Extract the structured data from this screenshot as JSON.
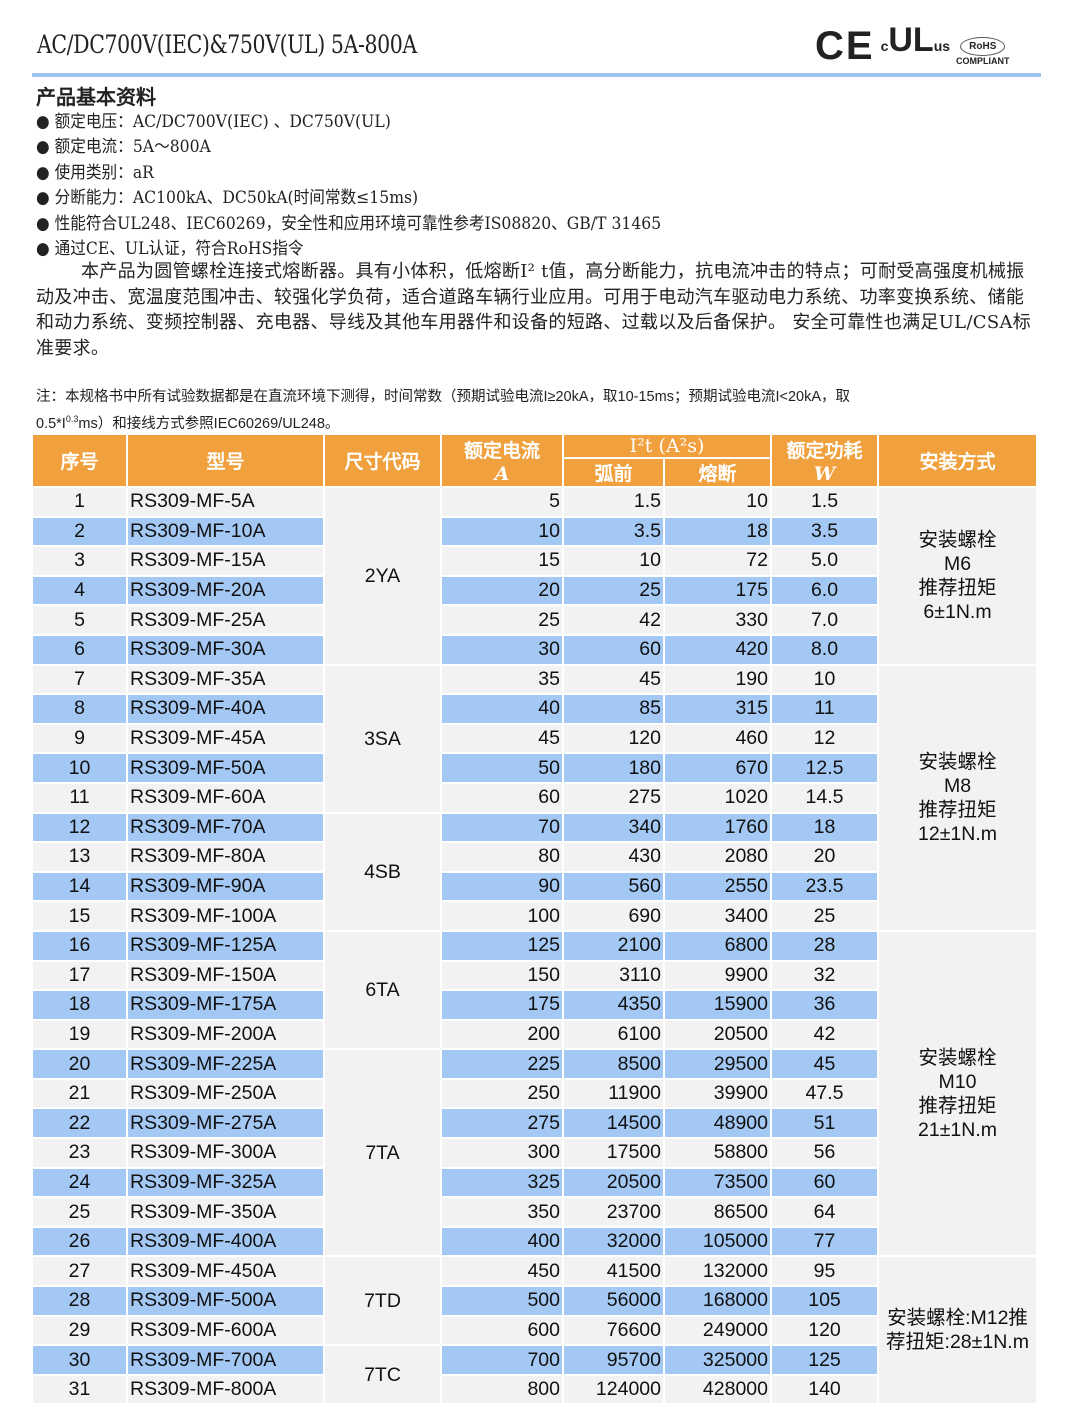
{
  "header": {
    "title": "AC/DC700V(IEC)&750V(UL)  5A-800A",
    "logos": {
      "ce": "CE",
      "ul": "c UL us",
      "rohs": "RoHS",
      "compliant": "COMPLIANT"
    }
  },
  "section_title": "产品基本资料",
  "bullets": [
    "额定电压：AC/DC700V(IEC) 、DC750V(UL)",
    "额定电流：5A～800A",
    "使用类别：aR",
    "分断能力：AC100kA、DC50kA(时间常数≤15ms)",
    "性能符合UL248、IEC60269，安全性和应用环境可靠性参考IS08820、GB/T 31465",
    "通过CE、UL认证，符合RoHS指令"
  ],
  "paragraph": "本产品为圆管螺栓连接式熔断器。具有小体积，低熔断I² t值，高分断能力，抗电流冲击的特点；可耐受高强度机械振动及冲击、宽温度范围冲击、较强化学负荷，适合道路车辆行业应用。可用于电动汽车驱动电力系统、功率变换系统、储能和动力系统、变频控制器、充电器、导线及其他车用器件和设备的短路、过载以及后备保护。 安全可靠性也满足UL/CSA标准要求。",
  "note": {
    "line1": "注：本规格书中所有试验数据都是在直流环境下测得，时间常数（预期试验电流I≥20kA，取10-15ms；预期试验电流I<20kA，取",
    "prefix": "0.5*I",
    "sup": "0.3",
    "suffix": "ms）和接线方式参照IEC60269/UL248。"
  },
  "colors": {
    "header_bg": "#f0a03c",
    "row_blue": "#a4c8f4",
    "row_gray": "#f2f2f2",
    "rule": "#9dc3ef"
  },
  "table": {
    "headers": {
      "seq": "序号",
      "model": "型号",
      "size": "尺寸代码",
      "current": "额定电流",
      "current_unit": "A",
      "i2t": "I²t (A²s)",
      "prearc": "弧前",
      "total": "熔断",
      "power": "额定功耗",
      "power_unit": "W",
      "mount": "安装方式"
    },
    "rows": [
      [
        "1",
        "RS309-MF-5A",
        "5",
        "1.5",
        "10",
        "1.5"
      ],
      [
        "2",
        "RS309-MF-10A",
        "10",
        "3.5",
        "18",
        "3.5"
      ],
      [
        "3",
        "RS309-MF-15A",
        "15",
        "10",
        "72",
        "5.0"
      ],
      [
        "4",
        "RS309-MF-20A",
        "20",
        "25",
        "175",
        "6.0"
      ],
      [
        "5",
        "RS309-MF-25A",
        "25",
        "42",
        "330",
        "7.0"
      ],
      [
        "6",
        "RS309-MF-30A",
        "30",
        "60",
        "420",
        "8.0"
      ],
      [
        "7",
        "RS309-MF-35A",
        "35",
        "45",
        "190",
        "10"
      ],
      [
        "8",
        "RS309-MF-40A",
        "40",
        "85",
        "315",
        "11"
      ],
      [
        "9",
        "RS309-MF-45A",
        "45",
        "120",
        "460",
        "12"
      ],
      [
        "10",
        "RS309-MF-50A",
        "50",
        "180",
        "670",
        "12.5"
      ],
      [
        "11",
        "RS309-MF-60A",
        "60",
        "275",
        "1020",
        "14.5"
      ],
      [
        "12",
        "RS309-MF-70A",
        "70",
        "340",
        "1760",
        "18"
      ],
      [
        "13",
        "RS309-MF-80A",
        "80",
        "430",
        "2080",
        "20"
      ],
      [
        "14",
        "RS309-MF-90A",
        "90",
        "560",
        "2550",
        "23.5"
      ],
      [
        "15",
        "RS309-MF-100A",
        "100",
        "690",
        "3400",
        "25"
      ],
      [
        "16",
        "RS309-MF-125A",
        "125",
        "2100",
        "6800",
        "28"
      ],
      [
        "17",
        "RS309-MF-150A",
        "150",
        "3110",
        "9900",
        "32"
      ],
      [
        "18",
        "RS309-MF-175A",
        "175",
        "4350",
        "15900",
        "36"
      ],
      [
        "19",
        "RS309-MF-200A",
        "200",
        "6100",
        "20500",
        "42"
      ],
      [
        "20",
        "RS309-MF-225A",
        "225",
        "8500",
        "29500",
        "45"
      ],
      [
        "21",
        "RS309-MF-250A",
        "250",
        "11900",
        "39900",
        "47.5"
      ],
      [
        "22",
        "RS309-MF-275A",
        "275",
        "14500",
        "48900",
        "51"
      ],
      [
        "23",
        "RS309-MF-300A",
        "300",
        "17500",
        "58800",
        "56"
      ],
      [
        "24",
        "RS309-MF-325A",
        "325",
        "20500",
        "73500",
        "60"
      ],
      [
        "25",
        "RS309-MF-350A",
        "350",
        "23700",
        "86500",
        "64"
      ],
      [
        "26",
        "RS309-MF-400A",
        "400",
        "32000",
        "105000",
        "77"
      ],
      [
        "27",
        "RS309-MF-450A",
        "450",
        "41500",
        "132000",
        "95"
      ],
      [
        "28",
        "RS309-MF-500A",
        "500",
        "56000",
        "168000",
        "105"
      ],
      [
        "29",
        "RS309-MF-600A",
        "600",
        "76600",
        "249000",
        "120"
      ],
      [
        "30",
        "RS309-MF-700A",
        "700",
        "95700",
        "325000",
        "125"
      ],
      [
        "31",
        "RS309-MF-800A",
        "800",
        "124000",
        "428000",
        "140"
      ]
    ],
    "size_groups": [
      {
        "code": "2YA",
        "rows": 6
      },
      {
        "code": "3SA",
        "rows": 5
      },
      {
        "code": "4SB",
        "rows": 4
      },
      {
        "code": "6TA",
        "rows": 4
      },
      {
        "code": "7TA",
        "rows": 7
      },
      {
        "code": "7TD",
        "rows": 3
      },
      {
        "code": "7TC",
        "rows": 2
      }
    ],
    "mount_groups": [
      {
        "lines": [
          "安装螺栓",
          "M6",
          "推荐扭矩",
          "6±1N.m"
        ],
        "rows": 6
      },
      {
        "lines": [
          "安装螺栓",
          "M8",
          "推荐扭矩",
          "12±1N.m"
        ],
        "rows": 9
      },
      {
        "lines": [
          "安装螺栓",
          "M10",
          "推荐扭矩",
          "21±1N.m"
        ],
        "rows": 11
      },
      {
        "lines": [
          "安装螺栓:M12推荐扭矩:28±1N.m"
        ],
        "rows": 5
      }
    ]
  }
}
